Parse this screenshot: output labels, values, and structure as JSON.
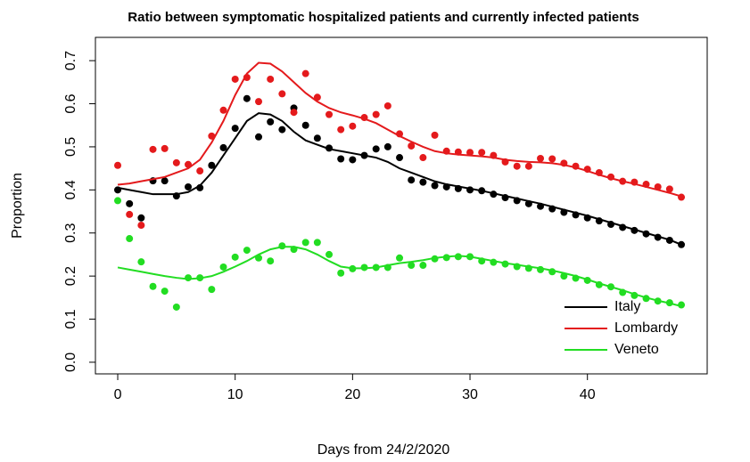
{
  "chart_data": {
    "type": "scatter",
    "title": "Ratio between symptomatic hospitalized patients and currently infected patients",
    "xlabel": "Days from 24/2/2020",
    "ylabel": "Proportion",
    "x": [
      0,
      1,
      2,
      3,
      4,
      5,
      6,
      7,
      8,
      9,
      10,
      11,
      12,
      13,
      14,
      15,
      16,
      17,
      18,
      19,
      20,
      21,
      22,
      23,
      24,
      25,
      26,
      27,
      28,
      29,
      30,
      31,
      32,
      33,
      34,
      35,
      36,
      37,
      38,
      39,
      40,
      41,
      42,
      43,
      44,
      45,
      46,
      47,
      48
    ],
    "series": [
      {
        "name": "Italy",
        "color": "#000000",
        "values": [
          0.4,
          0.368,
          0.335,
          0.421,
          0.421,
          0.386,
          0.407,
          0.405,
          0.457,
          0.498,
          0.543,
          0.612,
          0.523,
          0.558,
          0.54,
          0.59,
          0.55,
          0.52,
          0.497,
          0.472,
          0.47,
          0.48,
          0.495,
          0.5,
          0.475,
          0.423,
          0.418,
          0.41,
          0.407,
          0.403,
          0.4,
          0.398,
          0.39,
          0.382,
          0.375,
          0.368,
          0.362,
          0.356,
          0.348,
          0.342,
          0.335,
          0.328,
          0.32,
          0.313,
          0.306,
          0.298,
          0.29,
          0.283,
          0.273
        ],
        "fit": [
          0.405,
          0.4,
          0.395,
          0.39,
          0.39,
          0.39,
          0.395,
          0.41,
          0.44,
          0.48,
          0.52,
          0.56,
          0.578,
          0.575,
          0.56,
          0.535,
          0.515,
          0.505,
          0.495,
          0.49,
          0.485,
          0.48,
          0.475,
          0.465,
          0.45,
          0.44,
          0.43,
          0.42,
          0.413,
          0.408,
          0.403,
          0.398,
          0.392,
          0.386,
          0.38,
          0.374,
          0.368,
          0.361,
          0.354,
          0.347,
          0.34,
          0.332,
          0.324,
          0.316,
          0.308,
          0.3,
          0.292,
          0.284,
          0.273
        ]
      },
      {
        "name": "Lombardy",
        "color": "#e41a1c",
        "values": [
          0.457,
          0.343,
          0.318,
          0.494,
          0.496,
          0.463,
          0.459,
          0.444,
          0.525,
          0.585,
          0.657,
          0.661,
          0.605,
          0.657,
          0.623,
          0.58,
          0.67,
          0.615,
          0.575,
          0.54,
          0.548,
          0.568,
          0.575,
          0.595,
          0.53,
          0.502,
          0.475,
          0.527,
          0.49,
          0.488,
          0.487,
          0.487,
          0.48,
          0.465,
          0.455,
          0.455,
          0.473,
          0.472,
          0.462,
          0.455,
          0.448,
          0.44,
          0.43,
          0.42,
          0.418,
          0.413,
          0.407,
          0.402,
          0.383
        ],
        "fit": [
          0.412,
          0.415,
          0.42,
          0.425,
          0.43,
          0.44,
          0.45,
          0.47,
          0.51,
          0.56,
          0.62,
          0.67,
          0.695,
          0.693,
          0.675,
          0.65,
          0.625,
          0.605,
          0.59,
          0.58,
          0.573,
          0.565,
          0.555,
          0.54,
          0.525,
          0.512,
          0.5,
          0.49,
          0.485,
          0.482,
          0.48,
          0.478,
          0.475,
          0.47,
          0.467,
          0.465,
          0.464,
          0.462,
          0.458,
          0.452,
          0.444,
          0.435,
          0.427,
          0.42,
          0.414,
          0.407,
          0.4,
          0.393,
          0.385
        ]
      },
      {
        "name": "Veneto",
        "color": "#22dd22",
        "values": [
          0.375,
          0.287,
          0.233,
          0.176,
          0.165,
          0.128,
          0.196,
          0.196,
          0.169,
          0.221,
          0.244,
          0.26,
          0.242,
          0.235,
          0.27,
          0.262,
          0.278,
          0.278,
          0.25,
          0.207,
          0.217,
          0.22,
          0.22,
          0.22,
          0.242,
          0.225,
          0.225,
          0.24,
          0.243,
          0.245,
          0.245,
          0.235,
          0.232,
          0.228,
          0.222,
          0.218,
          0.215,
          0.21,
          0.2,
          0.195,
          0.19,
          0.18,
          0.175,
          0.162,
          0.155,
          0.148,
          0.142,
          0.138,
          0.133
        ],
        "fit": [
          0.22,
          0.215,
          0.21,
          0.205,
          0.2,
          0.196,
          0.193,
          0.195,
          0.2,
          0.21,
          0.222,
          0.235,
          0.25,
          0.262,
          0.268,
          0.268,
          0.262,
          0.25,
          0.235,
          0.222,
          0.218,
          0.218,
          0.22,
          0.225,
          0.23,
          0.233,
          0.237,
          0.242,
          0.245,
          0.247,
          0.245,
          0.24,
          0.235,
          0.23,
          0.226,
          0.222,
          0.218,
          0.213,
          0.207,
          0.2,
          0.192,
          0.183,
          0.175,
          0.167,
          0.158,
          0.15,
          0.143,
          0.137,
          0.13
        ]
      }
    ],
    "xlim": [
      -1.9,
      50.2
    ],
    "xticks": [
      0,
      10,
      20,
      30,
      40
    ],
    "ylim": [
      -0.027,
      0.754
    ],
    "yticks": [
      {
        "value": 0,
        "label": "0.0"
      },
      0.1,
      0.2,
      0.3,
      0.4,
      0.5,
      0.6,
      0.7
    ],
    "legend": "bottom-right"
  }
}
